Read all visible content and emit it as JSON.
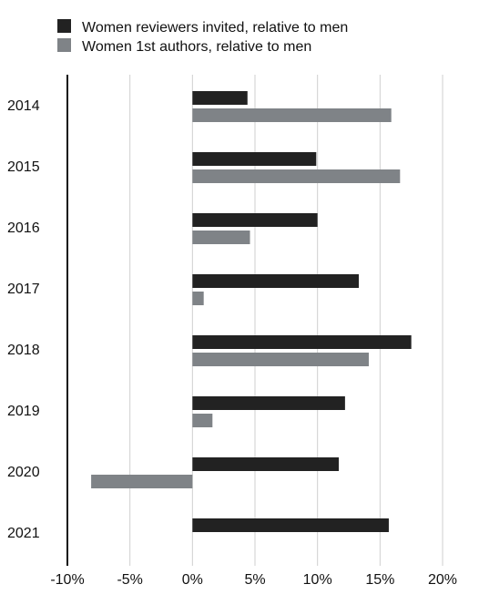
{
  "chart_data": {
    "type": "bar",
    "orientation": "horizontal",
    "categories": [
      "2014",
      "2015",
      "2016",
      "2017",
      "2018",
      "2019",
      "2020",
      "2021"
    ],
    "series": [
      {
        "name": "Women reviewers invited, relative to men",
        "color": "#222222",
        "values": [
          4.4,
          9.9,
          10.0,
          13.3,
          17.5,
          12.2,
          11.7,
          15.7
        ]
      },
      {
        "name": "Women 1st authors, relative to men",
        "color": "#7f8387",
        "values": [
          15.9,
          16.6,
          4.6,
          0.9,
          14.1,
          1.6,
          -8.1,
          null
        ]
      }
    ],
    "xticks": [
      "-10%",
      "-5%",
      "0%",
      "5%",
      "10%",
      "15%",
      "20%"
    ],
    "xlim": [
      -10,
      20
    ],
    "grid": true,
    "legend_position": "top-left"
  }
}
